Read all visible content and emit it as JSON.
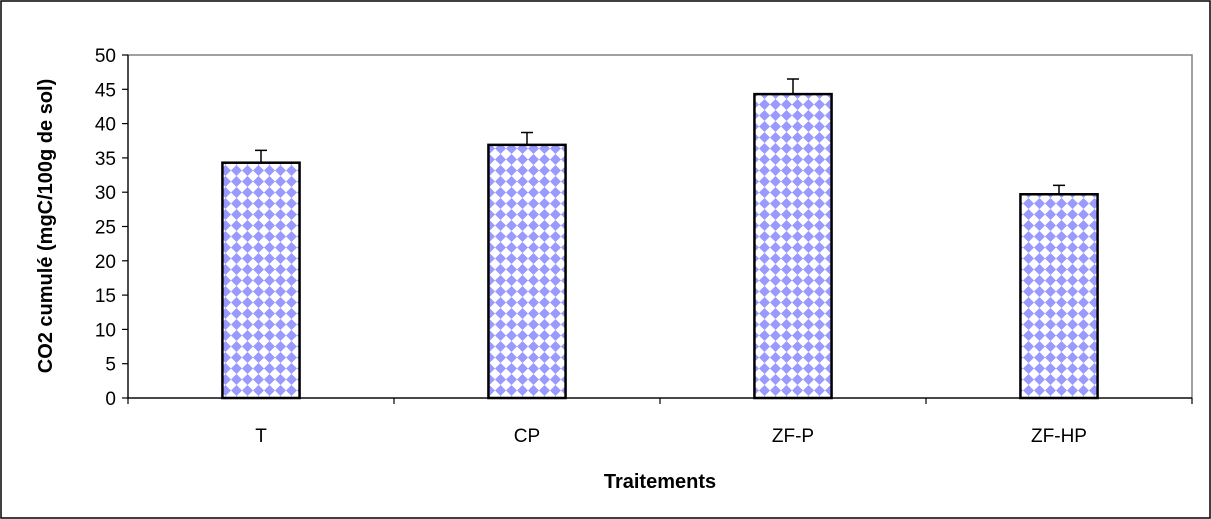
{
  "chart_data": {
    "type": "bar",
    "categories": [
      "T",
      "CP",
      "ZF-P",
      "ZF-HP"
    ],
    "values": [
      34.3,
      36.9,
      44.3,
      29.7
    ],
    "error_upper": [
      1.8,
      1.8,
      2.2,
      1.3
    ],
    "title": "",
    "xlabel": "Traitements",
    "ylabel": "CO2 cumulé (mgC/100g de sol)",
    "ylim": [
      0,
      50
    ],
    "yticks": [
      0,
      5,
      10,
      15,
      20,
      25,
      30,
      35,
      40,
      45,
      50
    ],
    "grid": false,
    "legend": "none",
    "bar_pattern_colors": {
      "fill": "#ffffff",
      "pattern": "#9999ff"
    },
    "plot_area_border_color": "#808080",
    "chart_border_color": "#000000"
  }
}
